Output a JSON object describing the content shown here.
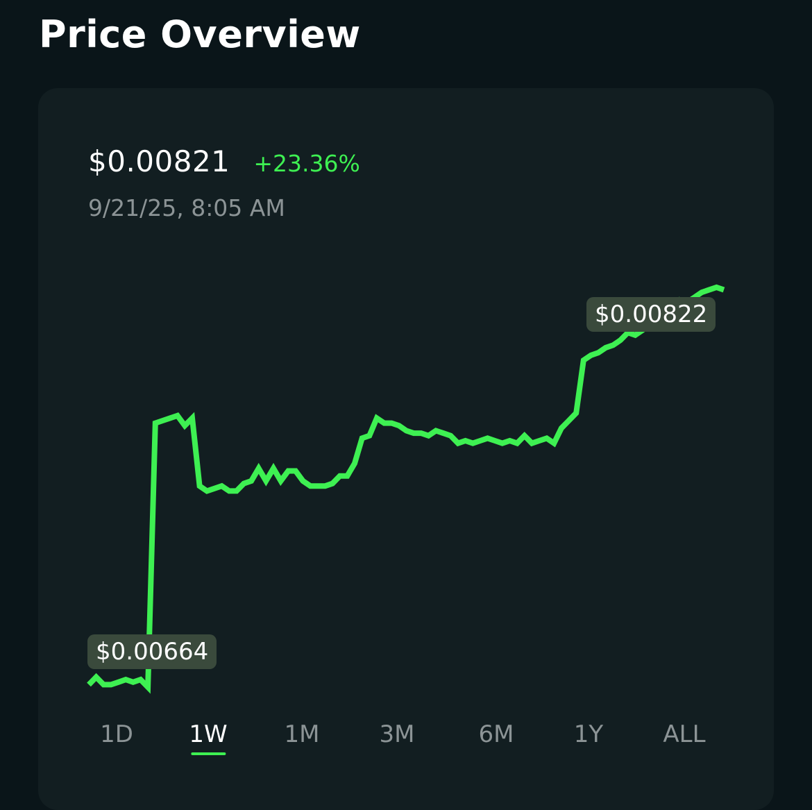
{
  "header": {
    "title": "Price Overview"
  },
  "summary": {
    "price": "$0.00821",
    "change": "+23.36%",
    "timestamp": "9/21/25, 8:05 AM"
  },
  "colors": {
    "line": "#3ef052",
    "change_positive": "#3ef052",
    "background": "#0a1519",
    "card": "#121e21",
    "tag": "#3a4a3c"
  },
  "chart_data": {
    "type": "line",
    "high_label": "$0.00822",
    "low_label": "$0.00664",
    "grid": false,
    "series": [
      {
        "values": [
          0.00664,
          0.00667,
          0.00664,
          0.00664,
          0.00665,
          0.00666,
          0.00665,
          0.00666,
          0.00663,
          0.00768,
          0.00769,
          0.0077,
          0.00771,
          0.00767,
          0.0077,
          0.00743,
          0.00741,
          0.00742,
          0.00743,
          0.00741,
          0.00741,
          0.00744,
          0.00745,
          0.0075,
          0.00745,
          0.0075,
          0.00745,
          0.00749,
          0.00749,
          0.00745,
          0.00743,
          0.00743,
          0.00743,
          0.00744,
          0.00747,
          0.00747,
          0.00752,
          0.00762,
          0.00763,
          0.0077,
          0.00768,
          0.00768,
          0.00767,
          0.00765,
          0.00764,
          0.00764,
          0.00763,
          0.00765,
          0.00764,
          0.00763,
          0.0076,
          0.00761,
          0.0076,
          0.00761,
          0.00762,
          0.00761,
          0.0076,
          0.00761,
          0.0076,
          0.00763,
          0.0076,
          0.00761,
          0.00762,
          0.0076,
          0.00766,
          0.00769,
          0.00772,
          0.00793,
          0.00795,
          0.00796,
          0.00798,
          0.00799,
          0.00801,
          0.00804,
          0.00803,
          0.00805,
          0.00808,
          0.0081,
          0.00812,
          0.00815,
          0.00817,
          0.00816,
          0.00818,
          0.0082,
          0.00821,
          0.00822,
          0.00821
        ]
      }
    ]
  },
  "ranges": {
    "items": [
      {
        "label": "1D"
      },
      {
        "label": "1W"
      },
      {
        "label": "1M"
      },
      {
        "label": "3M"
      },
      {
        "label": "6M"
      },
      {
        "label": "1Y"
      },
      {
        "label": "ALL"
      }
    ],
    "active": "1W"
  }
}
